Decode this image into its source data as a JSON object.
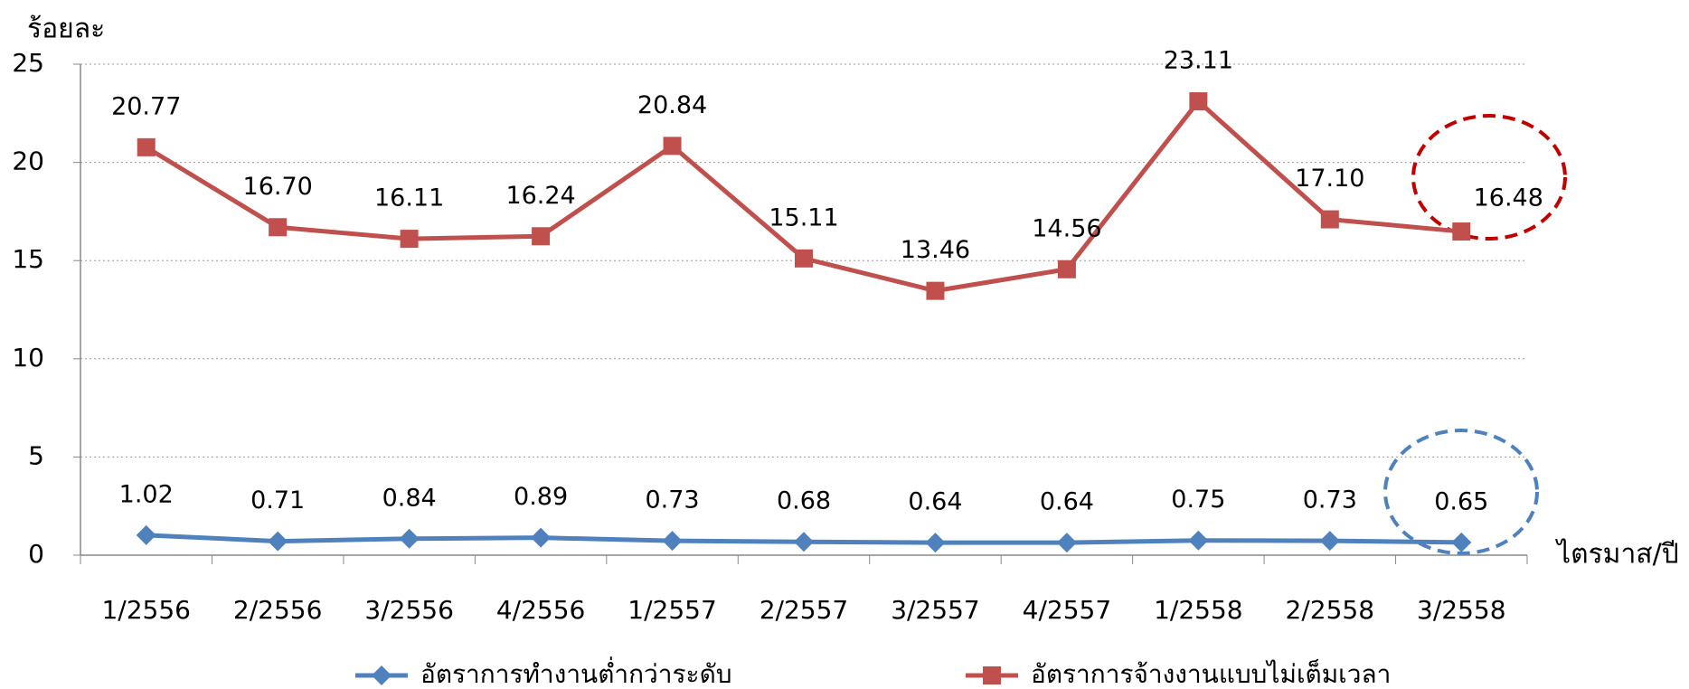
{
  "chart_data": {
    "type": "line",
    "y_label": "ร้อยละ",
    "x_label": "ไตรมาส/ปี",
    "categories": [
      "1/2556",
      "2/2556",
      "3/2556",
      "4/2556",
      "1/2557",
      "2/2557",
      "3/2557",
      "4/2557",
      "1/2558",
      "2/2558",
      "3/2558"
    ],
    "series": [
      {
        "name": "อัตราการทำงานต่ำกว่าระดับ",
        "color": "#4f81bd",
        "label_color": "#1f7fd0",
        "marker": "diamond",
        "values": [
          1.02,
          0.71,
          0.84,
          0.89,
          0.73,
          0.68,
          0.64,
          0.64,
          0.75,
          0.73,
          0.65
        ],
        "value_labels": [
          "1.02",
          "0.71",
          "0.84",
          "0.89",
          "0.73",
          "0.68",
          "0.64",
          "0.64",
          "0.75",
          "0.73",
          "0.65"
        ]
      },
      {
        "name": "อัตราการจ้างงานแบบไม่เต็มเวลา",
        "color": "#c0504d",
        "label_color": "#ff0000",
        "marker": "square",
        "values": [
          20.77,
          16.7,
          16.11,
          16.24,
          20.84,
          15.11,
          13.46,
          14.56,
          23.11,
          17.1,
          16.48
        ],
        "value_labels": [
          "20.77",
          "16.70",
          "16.11",
          "16.24",
          "20.84",
          "15.11",
          "13.46",
          "14.56",
          "23.11",
          "17.10",
          "16.48"
        ]
      }
    ],
    "ylim": [
      0,
      25
    ],
    "yticks": [
      0,
      5,
      10,
      15,
      20,
      25
    ],
    "grid": true
  }
}
